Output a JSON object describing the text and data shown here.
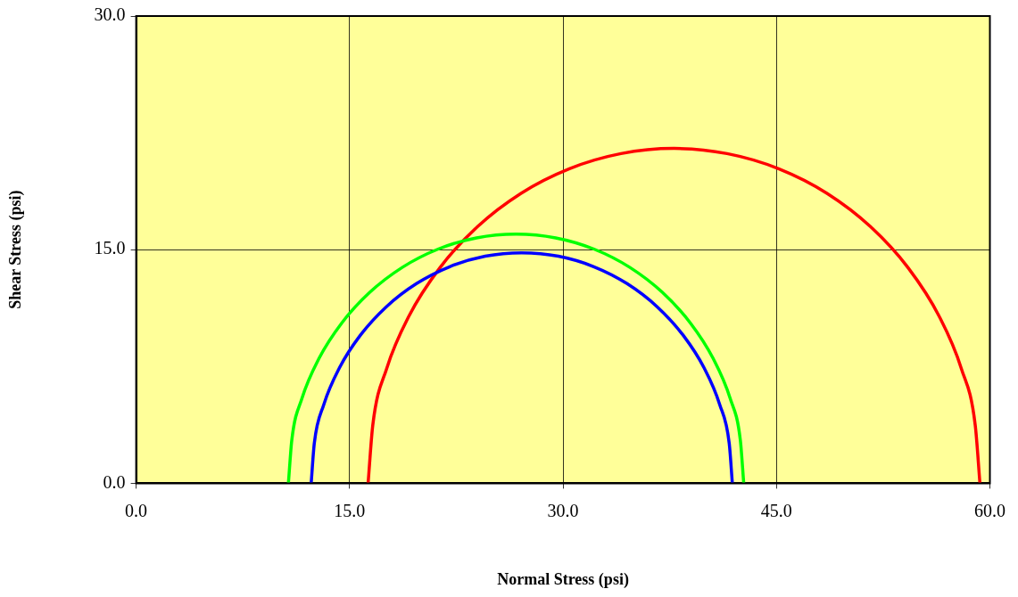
{
  "chart_data": {
    "type": "line",
    "xlabel": "Normal Stress (psi)",
    "ylabel": "Shear Stress (psi)",
    "xlim": [
      0,
      60
    ],
    "ylim": [
      0,
      30
    ],
    "xticks": [
      {
        "value": 0,
        "label": "0.0"
      },
      {
        "value": 15,
        "label": "15.0"
      },
      {
        "value": 30,
        "label": "30.0"
      },
      {
        "value": 45,
        "label": "45.0"
      },
      {
        "value": 60,
        "label": "60.0"
      }
    ],
    "yticks": [
      {
        "value": 0,
        "label": "0.0"
      },
      {
        "value": 15,
        "label": "15.0"
      },
      {
        "value": 30,
        "label": "30.0"
      }
    ],
    "grid": true,
    "legend": false,
    "marker": "none",
    "line_style": "solid",
    "series": [
      {
        "color": "#00ff00",
        "x": [
          10.7,
          10.94,
          11.66,
          12.84,
          14.44,
          16.42,
          18.7,
          21.23,
          23.92,
          26.7,
          29.48,
          32.17,
          34.7,
          36.98,
          38.96,
          40.56,
          41.74,
          42.46,
          42.7
        ],
        "values": [
          0,
          2.78,
          5.47,
          8,
          10.28,
          12.26,
          13.86,
          15.04,
          15.76,
          16,
          15.76,
          15.04,
          13.86,
          12.26,
          10.28,
          8,
          5.47,
          2.78,
          0
        ]
      },
      {
        "color": "#0000ff",
        "x": [
          12.3,
          12.52,
          13.19,
          14.28,
          15.76,
          17.59,
          19.7,
          22.04,
          24.53,
          27.1,
          29.67,
          32.16,
          34.5,
          36.61,
          38.44,
          39.92,
          41.01,
          41.68,
          41.9
        ],
        "values": [
          0,
          2.57,
          5.06,
          7.4,
          9.51,
          11.34,
          12.82,
          13.91,
          14.58,
          14.8,
          14.58,
          13.91,
          12.82,
          11.34,
          9.51,
          7.4,
          5.06,
          2.57,
          0
        ]
      },
      {
        "color": "#ff0000",
        "x": [
          16.3,
          16.63,
          17.6,
          19.18,
          21.33,
          23.98,
          27.05,
          30.45,
          34.07,
          37.8,
          41.53,
          45.15,
          48.55,
          51.62,
          54.27,
          56.42,
          58.0,
          58.97,
          59.3
        ],
        "values": [
          0,
          3.73,
          7.35,
          10.75,
          13.82,
          16.47,
          18.62,
          20.2,
          21.17,
          21.5,
          21.17,
          20.2,
          18.62,
          16.47,
          13.82,
          10.75,
          7.35,
          3.73,
          0
        ]
      }
    ]
  }
}
